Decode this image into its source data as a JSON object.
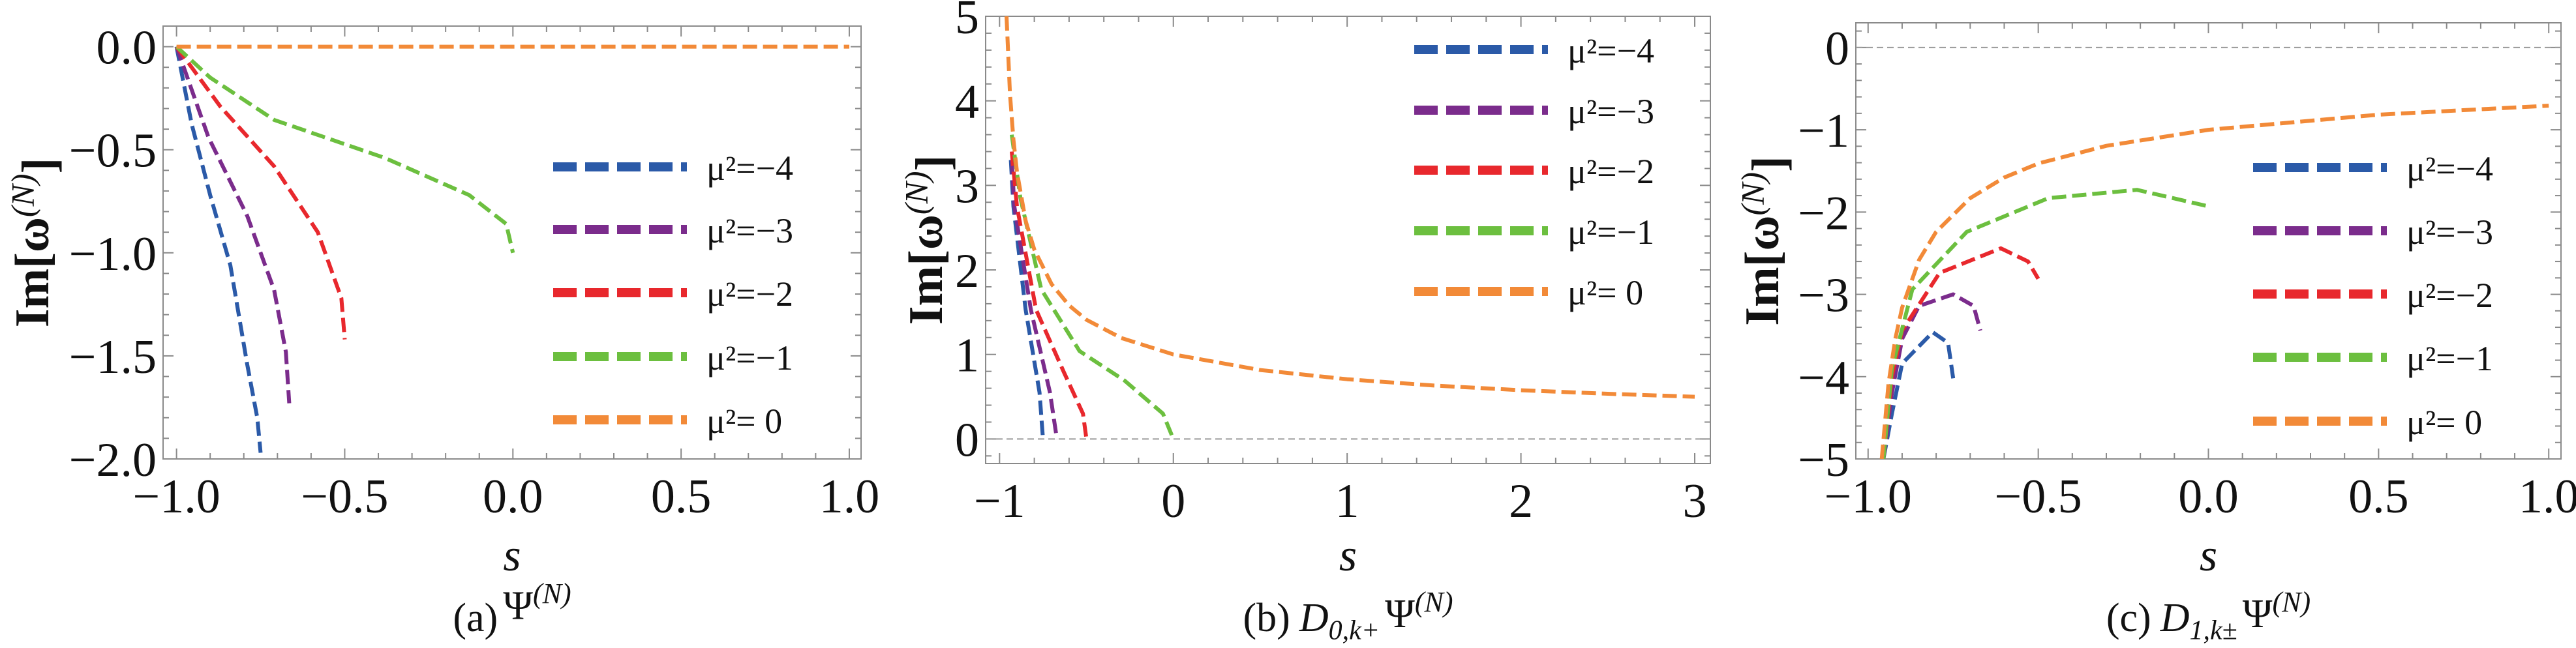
{
  "colors": {
    "mu2_-4": "#2b5aa8",
    "mu2_-3": "#7b2c8c",
    "mu2_-2": "#e8282d",
    "mu2_-1": "#6cbf3f",
    "mu2_0": "#f28a38",
    "frame": "#8a8a8a",
    "zero_line": "#9a9a9a"
  },
  "chart_data": [
    {
      "type": "line",
      "caption": {
        "label": "(a)",
        "op": "",
        "sub": "",
        "main": "Ψ",
        "sup": "(N)"
      },
      "xlabel": "s",
      "ylabel": {
        "pre": "Im[ω",
        "sup": "(N)",
        "post": "]"
      },
      "xlim": [
        -1.04,
        1.035
      ],
      "ylim": [
        -2,
        0.1
      ],
      "xticks": [
        -1,
        -0.5,
        0,
        0.5,
        1
      ],
      "xtick_labels": [
        "−1.0",
        "−0.5",
        "0.0",
        "0.5",
        "1.0"
      ],
      "xminor": 0.1,
      "yticks": [
        0,
        -0.5,
        -1,
        -1.5,
        -2
      ],
      "ytick_labels": [
        "0.0",
        "−0.5",
        "−1.0",
        "−1.5",
        "−2.0"
      ],
      "yminor": 0.1,
      "zero_line": false,
      "legend_placement": "right",
      "series": [
        {
          "name": "μ²=−4",
          "color_key": "mu2_-4",
          "points": [
            [
              -1,
              0
            ],
            [
              -0.955,
              -0.375
            ],
            [
              -0.9,
              -0.72
            ],
            [
              -0.84,
              -1.06
            ],
            [
              -0.79,
              -1.54
            ],
            [
              -0.76,
              -1.8
            ],
            [
              -0.75,
              -1.97
            ]
          ]
        },
        {
          "name": "μ²=−3",
          "color_key": "mu2_-3",
          "points": [
            [
              -1,
              0
            ],
            [
              -0.905,
              -0.44
            ],
            [
              -0.79,
              -0.82
            ],
            [
              -0.71,
              -1.18
            ],
            [
              -0.675,
              -1.48
            ],
            [
              -0.665,
              -1.73
            ]
          ]
        },
        {
          "name": "μ²=−2",
          "color_key": "mu2_-2",
          "points": [
            [
              -1,
              0
            ],
            [
              -0.87,
              -0.29
            ],
            [
              -0.71,
              -0.58
            ],
            [
              -0.58,
              -0.9
            ],
            [
              -0.51,
              -1.22
            ],
            [
              -0.5,
              -1.42
            ]
          ]
        },
        {
          "name": "μ²=−1",
          "color_key": "mu2_-1",
          "points": [
            [
              -1,
              0
            ],
            [
              -0.9,
              -0.15
            ],
            [
              -0.71,
              -0.355
            ],
            [
              -0.38,
              -0.54
            ],
            [
              -0.13,
              -0.72
            ],
            [
              -0.02,
              -0.86
            ],
            [
              0,
              -1.0
            ]
          ]
        },
        {
          "name": "μ²= 0",
          "color_key": "mu2_0",
          "points": [
            [
              -1,
              0
            ],
            [
              1,
              0
            ]
          ]
        }
      ]
    },
    {
      "type": "line",
      "caption": {
        "label": "(b)",
        "op": "D",
        "sub": "0,k+",
        "main": "Ψ",
        "sup": "(N)"
      },
      "xlabel": "s",
      "ylabel": {
        "pre": "Im[ω",
        "sup": "(N)",
        "post": "]"
      },
      "xlim": [
        -1.08,
        3.09
      ],
      "ylim": [
        -0.29,
        5
      ],
      "xticks": [
        -1,
        0,
        1,
        2,
        3
      ],
      "xtick_labels": [
        "−1",
        "0",
        "1",
        "2",
        "3"
      ],
      "xminor": 0.2,
      "yticks": [
        0,
        1,
        2,
        3,
        4,
        5
      ],
      "ytick_labels": [
        "0",
        "1",
        "2",
        "3",
        "4",
        "5"
      ],
      "yminor": 0.2,
      "zero_line": true,
      "legend_placement": "top-right",
      "series": [
        {
          "name": "μ²=−4",
          "color_key": "mu2_-4",
          "points": [
            [
              -0.935,
              3.3
            ],
            [
              -0.92,
              2.75
            ],
            [
              -0.85,
              1.53
            ],
            [
              -0.77,
              0.55
            ],
            [
              -0.75,
              0
            ]
          ]
        },
        {
          "name": "μ²=−3",
          "color_key": "mu2_-3",
          "points": [
            [
              -0.93,
              3.3
            ],
            [
              -0.915,
              2.75
            ],
            [
              -0.82,
              1.53
            ],
            [
              -0.71,
              0.55
            ],
            [
              -0.67,
              0
            ]
          ]
        },
        {
          "name": "μ²=−2",
          "color_key": "mu2_-2",
          "points": [
            [
              -0.93,
              3.4
            ],
            [
              -0.9,
              2.75
            ],
            [
              -0.79,
              1.53
            ],
            [
              -0.63,
              0.79
            ],
            [
              -0.52,
              0.3
            ],
            [
              -0.5,
              0
            ]
          ]
        },
        {
          "name": "μ²=−1",
          "color_key": "mu2_-1",
          "points": [
            [
              -0.93,
              3.6
            ],
            [
              -0.88,
              2.85
            ],
            [
              -0.76,
              1.77
            ],
            [
              -0.54,
              1.04
            ],
            [
              -0.28,
              0.69
            ],
            [
              -0.06,
              0.3
            ],
            [
              0,
              0
            ]
          ]
        },
        {
          "name": "μ²= 0",
          "color_key": "mu2_0",
          "points": [
            [
              -0.96,
              5
            ],
            [
              -0.94,
              4.08
            ],
            [
              -0.92,
              3.54
            ],
            [
              -0.9,
              3.16
            ],
            [
              -0.85,
              2.58
            ],
            [
              -0.8,
              2.24
            ],
            [
              -0.7,
              1.83
            ],
            [
              -0.6,
              1.58
            ],
            [
              -0.5,
              1.41
            ],
            [
              -0.3,
              1.195
            ],
            [
              0,
              1
            ],
            [
              0.5,
              0.816
            ],
            [
              1,
              0.707
            ],
            [
              1.5,
              0.632
            ],
            [
              2,
              0.577
            ],
            [
              2.5,
              0.535
            ],
            [
              3,
              0.5
            ]
          ]
        }
      ]
    },
    {
      "type": "line",
      "caption": {
        "label": "(c)",
        "op": "D",
        "sub": "1,k±",
        "main": "Ψ",
        "sup": "(N)"
      },
      "xlabel": "s",
      "ylabel": {
        "pre": "Im[ω",
        "sup": "(N)",
        "post": "]"
      },
      "xlim": [
        -1.036,
        1.036
      ],
      "ylim": [
        -5,
        0.3
      ],
      "xticks": [
        -1,
        -0.5,
        0,
        0.5,
        1
      ],
      "xtick_labels": [
        "−1.0",
        "−0.5",
        "0.0",
        "0.5",
        "1.0"
      ],
      "xminor": 0.1,
      "yticks": [
        0,
        -1,
        -2,
        -3,
        -4,
        -5
      ],
      "ytick_labels": [
        "0",
        "−1",
        "−2",
        "−3",
        "−4",
        "−5"
      ],
      "yminor": 0.2,
      "zero_line": true,
      "legend_placement": "right",
      "series": [
        {
          "name": "μ²=−4",
          "color_key": "mu2_-4",
          "points": [
            [
              -0.955,
              -5
            ],
            [
              -0.93,
              -4.45
            ],
            [
              -0.9,
              -3.84
            ],
            [
              -0.81,
              -3.46
            ],
            [
              -0.765,
              -3.59
            ],
            [
              -0.75,
              -4.02
            ]
          ]
        },
        {
          "name": "μ²=−3",
          "color_key": "mu2_-3",
          "points": [
            [
              -0.955,
              -5
            ],
            [
              -0.93,
              -4.2
            ],
            [
              -0.9,
              -3.54
            ],
            [
              -0.85,
              -3.14
            ],
            [
              -0.75,
              -3.0
            ],
            [
              -0.69,
              -3.14
            ],
            [
              -0.67,
              -3.44
            ]
          ]
        },
        {
          "name": "μ²=−2",
          "color_key": "mu2_-2",
          "points": [
            [
              -0.955,
              -5
            ],
            [
              -0.93,
              -4.0
            ],
            [
              -0.9,
              -3.44
            ],
            [
              -0.79,
              -2.74
            ],
            [
              -0.61,
              -2.44
            ],
            [
              -0.53,
              -2.6
            ],
            [
              -0.5,
              -2.81
            ]
          ]
        },
        {
          "name": "μ²=−1",
          "color_key": "mu2_-1",
          "points": [
            [
              -0.955,
              -5
            ],
            [
              -0.93,
              -3.9
            ],
            [
              -0.87,
              -2.94
            ],
            [
              -0.71,
              -2.24
            ],
            [
              -0.47,
              -1.83
            ],
            [
              -0.21,
              -1.73
            ],
            [
              0,
              -1.93
            ]
          ]
        },
        {
          "name": "μ²= 0",
          "color_key": "mu2_0",
          "points": [
            [
              -0.96,
              -5
            ],
            [
              -0.94,
              -4.08
            ],
            [
              -0.92,
              -3.54
            ],
            [
              -0.9,
              -3.16
            ],
            [
              -0.85,
              -2.58
            ],
            [
              -0.8,
              -2.24
            ],
            [
              -0.7,
              -1.83
            ],
            [
              -0.6,
              -1.58
            ],
            [
              -0.5,
              -1.41
            ],
            [
              -0.3,
              -1.195
            ],
            [
              0,
              -1
            ],
            [
              0.5,
              -0.816
            ],
            [
              1,
              -0.707
            ]
          ]
        }
      ]
    }
  ]
}
